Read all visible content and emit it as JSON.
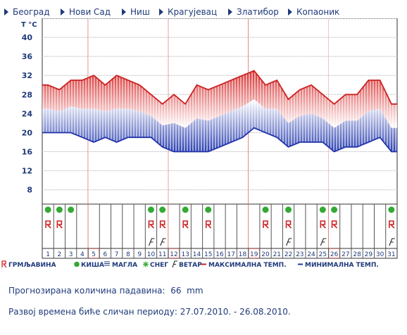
{
  "nav": {
    "items": [
      {
        "label": "Београд"
      },
      {
        "label": "Нови Сад"
      },
      {
        "label": "Ниш"
      },
      {
        "label": "Крагујевац"
      },
      {
        "label": "Златибор"
      },
      {
        "label": "Копаоник"
      }
    ]
  },
  "chart_data": {
    "type": "line",
    "ylabel": "T °C",
    "ylim": [
      5,
      44
    ],
    "yticks": [
      "8",
      "12",
      "16",
      "20",
      "24",
      "28",
      "32",
      "36",
      "40"
    ],
    "days": [
      "1",
      "2",
      "3",
      "4",
      "5",
      "6",
      "7",
      "8",
      "9",
      "10",
      "11",
      "12",
      "13",
      "14",
      "15",
      "16",
      "17",
      "18",
      "19",
      "20",
      "21",
      "22",
      "23",
      "24",
      "25",
      "26",
      "27",
      "28",
      "29",
      "30",
      "31"
    ],
    "highlighted_days": [
      "5",
      "12",
      "19",
      "26"
    ],
    "series": [
      {
        "name": "МАКСИМАЛНА ТЕМП.",
        "color": "#cc2222",
        "values": [
          30,
          29,
          31,
          31,
          32,
          30,
          32,
          31,
          30,
          28,
          26,
          28,
          26,
          30,
          29,
          30,
          31,
          32,
          33,
          30,
          31,
          27,
          29,
          30,
          28,
          26,
          28,
          28,
          31,
          31,
          26
        ]
      },
      {
        "name": "МИНИМАЛНА ТЕМП.",
        "color": "#2233aa",
        "values": [
          20,
          20,
          20,
          19,
          18,
          19,
          18,
          19,
          19,
          19,
          17,
          16,
          16,
          16,
          16,
          17,
          18,
          19,
          21,
          20,
          19,
          17,
          18,
          18,
          18,
          16,
          17,
          17,
          18,
          19,
          16
        ]
      }
    ],
    "rain_days": [
      "1",
      "2",
      "3",
      "10",
      "11",
      "13",
      "15",
      "20",
      "22",
      "25",
      "26",
      "31"
    ],
    "storm_days": [
      "1",
      "2",
      "10",
      "11",
      "13",
      "15",
      "20",
      "22",
      "25",
      "26",
      "31"
    ],
    "wind_days": [
      "10",
      "11",
      "22",
      "25",
      "31"
    ],
    "legend": {
      "storm": "ГРМЉАВИНА",
      "rain": "КИША",
      "fog": "МАГЛА",
      "snow": "СНЕГ",
      "wind": "ВЕТАР",
      "max": "МАКСИМАЛНА ТЕМП.",
      "min": "МИНИМАЛНА ТЕМП."
    },
    "colors": {
      "accent": "#1f3a7a",
      "highlight": "#e08080",
      "rain": "#33aa33",
      "storm": "#cc2222"
    }
  },
  "summary": {
    "precip_label": "Прогнозирана количина падавина:",
    "precip_value": "66",
    "precip_unit": "mm",
    "period_label": "Развој времена биће сличан периоду:",
    "period_value": "27.07.2010. - 26.08.2010."
  }
}
